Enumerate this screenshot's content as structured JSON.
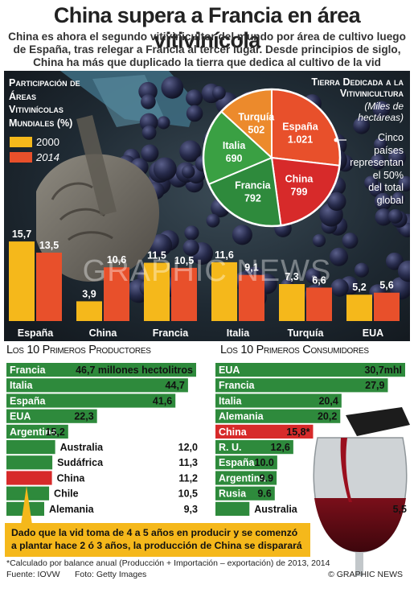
{
  "title": "China supera a Francia en área vitivinícola",
  "subtitle": "China es ahora el segundo vitivinicultor del mundo por área de cultivo luego de España, tras relegar a Francia al tercer lugar. Desde principios de siglo, China ha más que duplicado la tierra que dedica al cultivo de la vid",
  "colors": {
    "y2000": "#f5b81b",
    "y2014": "#e8502b",
    "green": "#2e8a3c",
    "red": "#d72a2a",
    "orange_pie": "#ec8a2c"
  },
  "bar_panel": {
    "title_lines": [
      "Participación de",
      "Áreas",
      "Vitivinícolas",
      "Mundiales (%)"
    ],
    "legend_2000": "2000",
    "legend_2014": "2014"
  },
  "pie_panel": {
    "title_line1": "Tierra Dedicada a la",
    "title_line2": "Vitivinicultura",
    "units_line1": "(Miles de",
    "units_line2": "hectáreas)",
    "note_lines": [
      "Cinco",
      "países",
      "representan",
      "el 50%",
      "del total",
      "global"
    ]
  },
  "watermark": "GRAPHIC NEWS",
  "chart_data": [
    {
      "type": "bar",
      "title": "Participación de Áreas Vitivinícolas Mundiales (%)",
      "categories": [
        "España",
        "China",
        "Francia",
        "Italia",
        "Turquía",
        "EUA"
      ],
      "series": [
        {
          "name": "2000",
          "values": [
            15.7,
            3.9,
            11.5,
            11.6,
            7.3,
            5.2
          ],
          "labels": [
            "15,7",
            "3,9",
            "11,5",
            "11,6",
            "7,3",
            "5,2"
          ]
        },
        {
          "name": "2014",
          "values": [
            13.5,
            10.6,
            10.5,
            9.1,
            6.6,
            5.6
          ],
          "labels": [
            "13,5",
            "10,6",
            "10,5",
            "9,1",
            "6,6",
            "5,6"
          ]
        }
      ]
    },
    {
      "type": "pie",
      "title": "Tierra Dedicada a la Vitivinicultura",
      "subtitle": "(Miles de hectáreas)",
      "categories": [
        "España",
        "China",
        "Francia",
        "Italia",
        "Turquía"
      ],
      "values": [
        1021,
        799,
        792,
        690,
        502
      ],
      "labels": [
        "1.021",
        "799",
        "792",
        "690",
        "502"
      ]
    },
    {
      "type": "bar",
      "title": "Los 10 Primeros Productores",
      "categories": [
        "Francia",
        "Italia",
        "España",
        "EUA",
        "Argentina",
        "Australia",
        "Sudáfrica",
        "China",
        "Chile",
        "Alemania"
      ],
      "values": [
        46.7,
        44.7,
        41.6,
        22.3,
        15.2,
        12.0,
        11.3,
        11.2,
        10.5,
        9.3
      ],
      "labels": [
        "46,7 millones hectolitros",
        "44,7",
        "41,6",
        "22,3",
        "15,2",
        "12,0",
        "11,3",
        "11,2",
        "10,5",
        "9,3"
      ]
    },
    {
      "type": "bar",
      "title": "Los 10 Primeros Consumidores",
      "categories": [
        "EUA",
        "Francia",
        "Italia",
        "Alemania",
        "China",
        "R. U.",
        "España",
        "Argentina",
        "Rusia",
        "Australia"
      ],
      "values": [
        30.7,
        27.9,
        20.4,
        20.2,
        15.8,
        12.6,
        10.0,
        9.9,
        9.6,
        5.5
      ],
      "labels": [
        "30,7mhl",
        "27,9",
        "20,4",
        "20,2",
        "15,8*",
        "12,6",
        "10.0",
        "9.9",
        "9.6",
        "5,5"
      ]
    }
  ],
  "producers_title": "Los 10 Primeros Productores",
  "consumers_title": "Los 10 Primeros Consumidores",
  "callout": "Dado que la vid toma de 4 a 5 años en producir y se comenzó a plantar hace 2 ó 3 años, la producción de China se disparará",
  "footnote": "*Calculado por balance anual (Producción + Importación – exportación) de 2013, 2014",
  "source": "Fuente: IOVW",
  "photo_credit": "Foto: Getty Images",
  "copyright": "© GRAPHIC NEWS"
}
